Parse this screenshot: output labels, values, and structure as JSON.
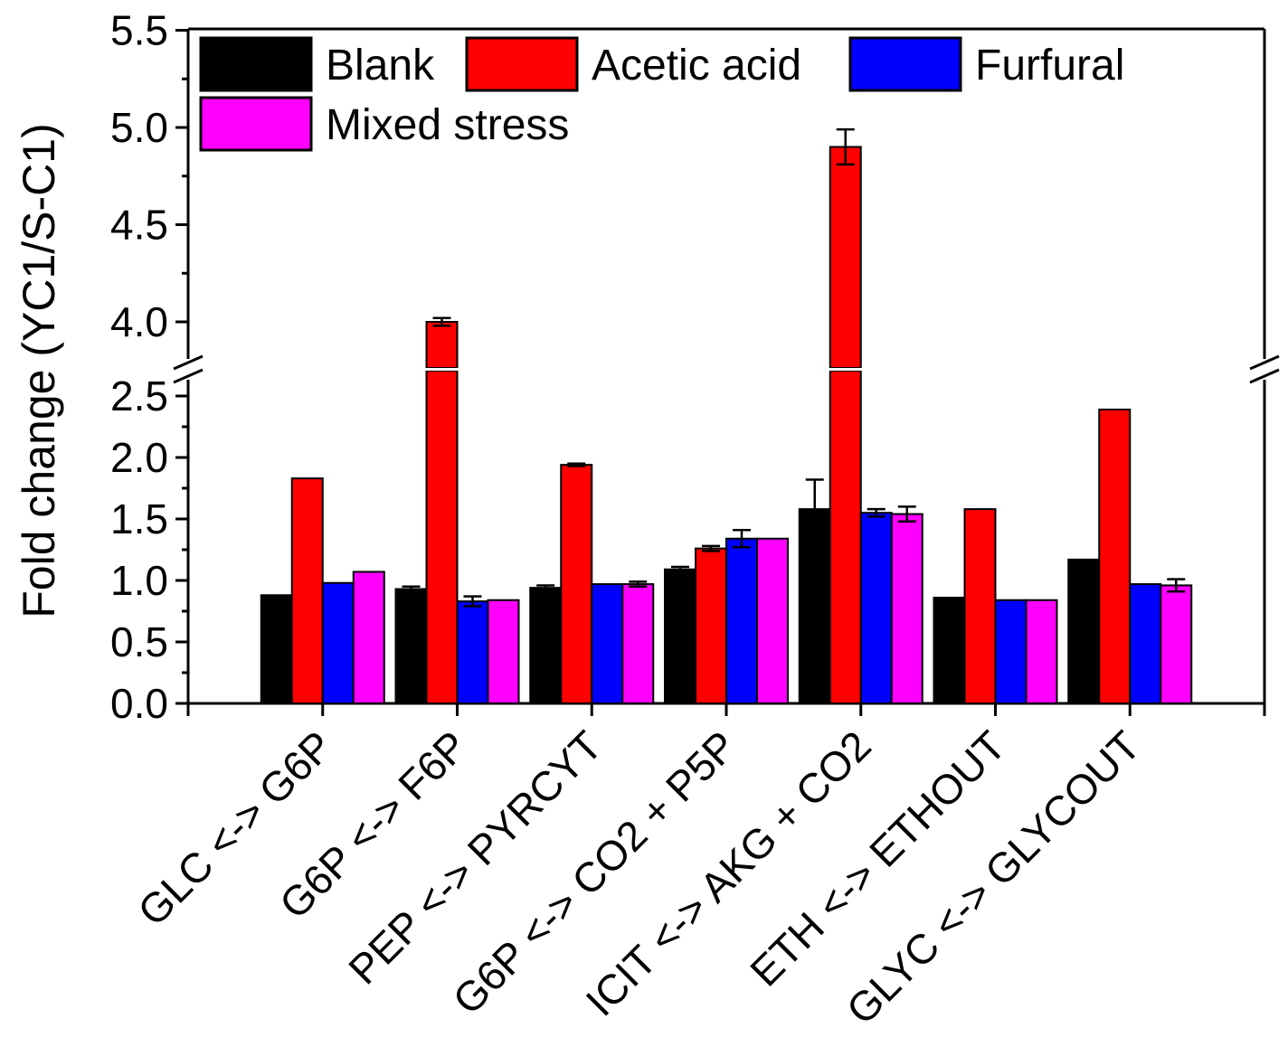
{
  "chart_data": {
    "type": "bar",
    "ylabel": "Fold change (YC1/S-C1)",
    "xlabel": "",
    "categories": [
      "GLC <-> G6P",
      "G6P <-> F6P",
      "PEP <-> PYRCYT",
      "G6P <-> CO2 + P5P",
      "ICIT <-> AKG + CO2",
      "ETH <-> ETHOUT",
      "GLYC <-> GLYCOUT"
    ],
    "series": [
      {
        "name": "Blank",
        "color": "#000000",
        "values": [
          0.88,
          0.93,
          0.94,
          1.09,
          1.58,
          0.86,
          1.17
        ],
        "errors": [
          0.0,
          0.02,
          0.02,
          0.02,
          0.24,
          0.0,
          0.0
        ]
      },
      {
        "name": "Acetic acid",
        "color": "#ff0000",
        "values": [
          1.83,
          4.0,
          1.94,
          1.26,
          4.9,
          1.58,
          2.39
        ],
        "errors": [
          0.0,
          0.02,
          0.01,
          0.02,
          0.09,
          0.0,
          0.0
        ]
      },
      {
        "name": "Furfural",
        "color": "#0000ff",
        "values": [
          0.98,
          0.83,
          0.97,
          1.34,
          1.55,
          0.84,
          0.97
        ],
        "errors": [
          0.0,
          0.04,
          0.0,
          0.07,
          0.03,
          0.0,
          0.0
        ]
      },
      {
        "name": "Mixed stress",
        "color": "#ff00ff",
        "values": [
          1.07,
          0.84,
          0.97,
          1.34,
          1.54,
          0.84,
          0.96
        ],
        "errors": [
          0.0,
          0.0,
          0.02,
          0.0,
          0.06,
          0.0,
          0.05
        ]
      }
    ],
    "y_axis_lower": {
      "range": [
        0.0,
        2.6
      ],
      "ticks": [
        "0.0",
        "0.5",
        "1.0",
        "1.5",
        "2.0",
        "2.5"
      ]
    },
    "y_axis_upper": {
      "range": [
        3.8,
        5.5
      ],
      "ticks": [
        "4.0",
        "4.5",
        "5.0",
        "5.5"
      ]
    },
    "axis_break": true,
    "legend_position": "top",
    "grid": false
  }
}
